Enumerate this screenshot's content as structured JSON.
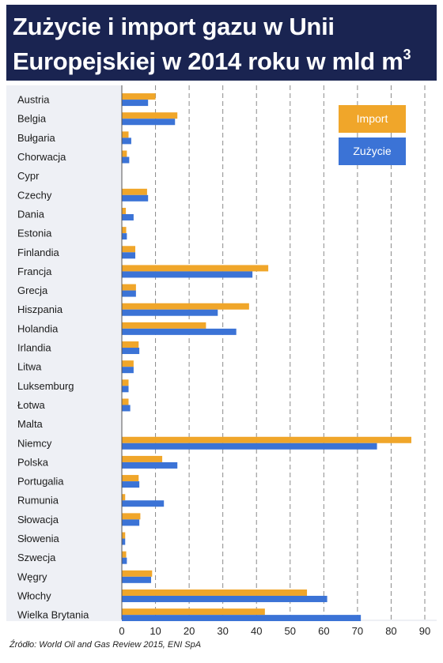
{
  "title_line1": "Zużycie i import gazu w Unii",
  "title_line2": "Europejskiej w 2014 roku w mld m",
  "title_unit_sup": "3",
  "source": "Źródło: World Oil and Gas Review 2015, ENI SpA",
  "colors": {
    "import": "#f0a62a",
    "usage": "#3b73d6",
    "header_bg": "#1a2451",
    "panel_bg": "#eef0f5"
  },
  "chart_data": {
    "type": "bar",
    "orientation": "horizontal",
    "categories": [
      "Austria",
      "Belgia",
      "Bułgaria",
      "Chorwacja",
      "Cypr",
      "Czechy",
      "Dania",
      "Estonia",
      "Finlandia",
      "Francja",
      "Grecja",
      "Hiszpania",
      "Holandia",
      "Irlandia",
      "Litwa",
      "Luksemburg",
      "Łotwa",
      "Malta",
      "Niemcy",
      "Polska",
      "Portugalia",
      "Rumunia",
      "Słowacja",
      "Słowenia",
      "Szwecja",
      "Węgry",
      "Włochy",
      "Wielka Brytania"
    ],
    "series": [
      {
        "name": "Import",
        "values": [
          10,
          16.5,
          2,
          1.5,
          0,
          7.5,
          1.2,
          1.3,
          4,
          43.5,
          4.2,
          37.8,
          25,
          5,
          3.5,
          2,
          2,
          0,
          86,
          12,
          5,
          1,
          5.5,
          1,
          1.3,
          9,
          55,
          42.5
        ]
      },
      {
        "name": "Zużycie",
        "values": [
          7.8,
          15.8,
          2.8,
          2.2,
          0,
          7.8,
          3.5,
          1.5,
          4,
          38.8,
          4.2,
          28.5,
          34,
          5.2,
          3.5,
          2,
          2.5,
          0,
          75.8,
          16.5,
          5.2,
          12.5,
          5.2,
          1,
          1.5,
          8.7,
          61,
          71
        ]
      }
    ],
    "xticks": [
      0,
      10,
      20,
      30,
      40,
      50,
      60,
      70,
      80,
      90
    ],
    "xlim": [
      0,
      90
    ],
    "grid": "vertical dashed",
    "legend_placement": "top-right"
  }
}
